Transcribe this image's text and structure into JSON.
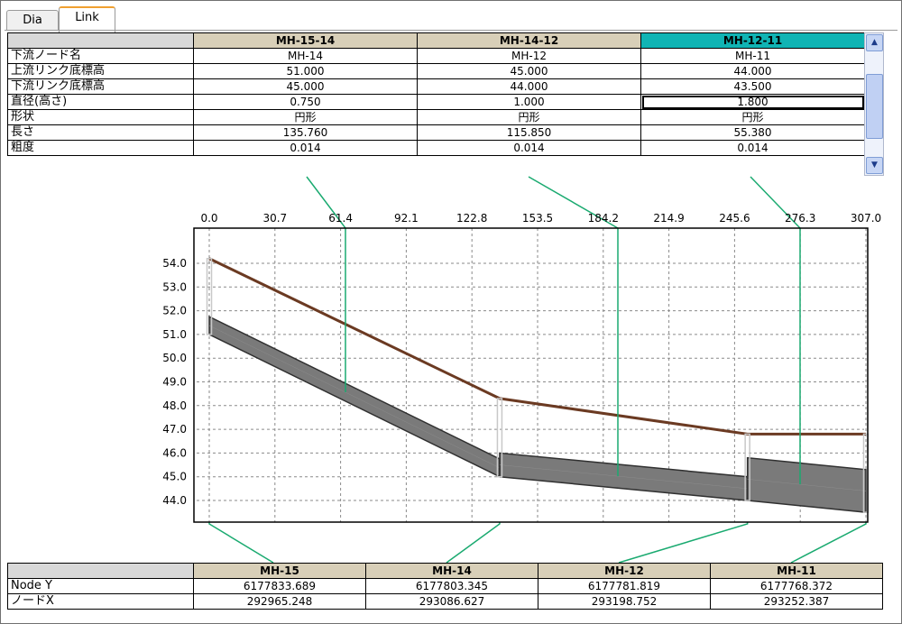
{
  "tabs": [
    {
      "label": "Dia",
      "active": false
    },
    {
      "label": "Link",
      "active": true
    }
  ],
  "link_table": {
    "columns": [
      "MH-15-14",
      "MH-14-12",
      "MH-12-11"
    ],
    "selected_column": 2,
    "rows": [
      {
        "label": "下流ノード名",
        "values": [
          "MH-14",
          "MH-12",
          "MH-11"
        ]
      },
      {
        "label": "上流リンク底標高",
        "values": [
          "51.000",
          "45.000",
          "44.000"
        ]
      },
      {
        "label": "下流リンク底標高",
        "values": [
          "45.000",
          "44.000",
          "43.500"
        ]
      },
      {
        "label": "直径(高さ)",
        "values": [
          "0.750",
          "1.000",
          "1.800"
        ]
      },
      {
        "label": "形状",
        "values": [
          "円形",
          "円形",
          "円形"
        ]
      },
      {
        "label": "長さ",
        "values": [
          "135.760",
          "115.850",
          "55.380"
        ]
      },
      {
        "label": "粗度",
        "values": [
          "0.014",
          "0.014",
          "0.014"
        ]
      }
    ]
  },
  "node_table": {
    "columns": [
      "MH-15",
      "MH-14",
      "MH-12",
      "MH-11"
    ],
    "rows": [
      {
        "label": "Node Y",
        "values": [
          "6177833.689",
          "6177803.345",
          "6177781.819",
          "6177768.372"
        ]
      },
      {
        "label": "ノードX",
        "values": [
          "292965.248",
          "293086.627",
          "293198.752",
          "293252.387"
        ]
      }
    ]
  },
  "chart_data": {
    "type": "line",
    "x_ticks": [
      "0.0",
      "30.7",
      "61.4",
      "92.1",
      "122.8",
      "153.5",
      "184.2",
      "214.9",
      "245.6",
      "276.3",
      "307.0"
    ],
    "y_ticks": [
      "54.0",
      "53.0",
      "52.0",
      "51.0",
      "50.0",
      "49.0",
      "48.0",
      "47.0",
      "46.0",
      "45.0",
      "44.0"
    ],
    "xlim": [
      0,
      307
    ],
    "ylim": [
      43,
      55
    ],
    "grid": true,
    "nodes": [
      {
        "name": "MH-15",
        "x": 0,
        "ground": 54.2
      },
      {
        "name": "MH-14",
        "x": 135.76,
        "ground": 48.3
      },
      {
        "name": "MH-12",
        "x": 251.61,
        "ground": 46.8
      },
      {
        "name": "MH-11",
        "x": 306.99,
        "ground": 46.8
      }
    ],
    "pipes": [
      {
        "name": "MH-15-14",
        "x0": 0,
        "x1": 135.76,
        "invert_up": 51.0,
        "invert_down": 45.0,
        "height": 0.75
      },
      {
        "name": "MH-14-12",
        "x0": 135.76,
        "x1": 251.61,
        "invert_up": 45.0,
        "invert_down": 44.0,
        "height": 1.0
      },
      {
        "name": "MH-12-11",
        "x0": 251.61,
        "x1": 306.99,
        "invert_up": 44.0,
        "invert_down": 43.5,
        "height": 1.8
      }
    ],
    "colors": {
      "ground": "#6b3a22",
      "pipe": "#7a7a7a",
      "connector": "#1aaa70",
      "manhole": "#c8c8c8"
    }
  }
}
